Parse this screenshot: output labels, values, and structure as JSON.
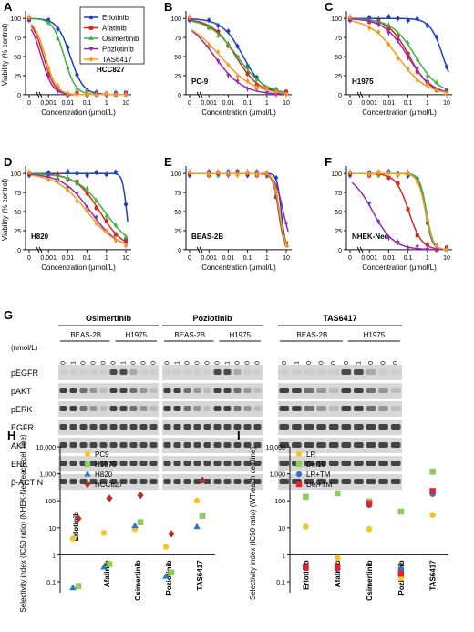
{
  "chart_data": [
    {
      "panel": "A",
      "type": "line",
      "cell_line": "HCC827",
      "xlabel": "Concentration (μmol/L)",
      "ylabel": "Viability (% control)",
      "x_ticks": [
        "0",
        "0.001",
        "0.01",
        "0.1",
        "1",
        "10"
      ],
      "y_ticks": [
        0,
        25,
        50,
        75,
        100
      ],
      "ylim": [
        0,
        105
      ],
      "x_scale": "log",
      "legend": "top-right",
      "series": [
        {
          "name": "Erlotinib",
          "color": "#1f3fbf",
          "marker": "circle",
          "ic50": 0.0135,
          "hill": 1.3
        },
        {
          "name": "Afatinib",
          "color": "#d42a1e",
          "marker": "square",
          "ic50": 0.00055,
          "hill": 1.5
        },
        {
          "name": "Osimertinib",
          "color": "#3cb341",
          "marker": "triangle-up",
          "ic50": 0.0065,
          "hill": 1.5
        },
        {
          "name": "Poziotinib",
          "color": "#8e2bb8",
          "marker": "triangle-down",
          "ic50": 0.00042,
          "hill": 1.5
        },
        {
          "name": "TAS6417",
          "color": "#f39a1f",
          "marker": "diamond",
          "ic50": 0.00068,
          "hill": 1.5
        }
      ]
    },
    {
      "panel": "B",
      "type": "line",
      "cell_line": "PC-9",
      "xlabel": "Concentration (μmol/L)",
      "ylabel": "",
      "x_ticks": [
        "0",
        "0.001",
        "0.01",
        "0.1",
        "1",
        "10"
      ],
      "y_ticks": [
        0,
        25,
        50,
        75,
        100
      ],
      "ylim": [
        0,
        105
      ],
      "x_scale": "log",
      "series": [
        {
          "name": "Erlotinib",
          "ic50": 0.06,
          "hill": 0.8
        },
        {
          "name": "Afatinib",
          "ic50": 0.025,
          "hill": 0.7
        },
        {
          "name": "Osimertinib",
          "ic50": 0.03,
          "hill": 0.6
        },
        {
          "name": "Poziotinib",
          "ic50": 0.002,
          "hill": 0.6
        },
        {
          "name": "TAS6417",
          "ic50": 0.004,
          "hill": 0.5
        }
      ]
    },
    {
      "panel": "C",
      "type": "line",
      "cell_line": "H1975",
      "xlabel": "Concentration (μmol/L)",
      "ylabel": "",
      "x_ticks": [
        "0",
        "0.001",
        "0.01",
        "0.1",
        "1",
        "10"
      ],
      "y_ticks": [
        0,
        25,
        50,
        75,
        100
      ],
      "ylim": [
        0,
        105
      ],
      "x_scale": "log",
      "series": [
        {
          "name": "Erlotinib",
          "ic50": 6.5,
          "hill": 1.3
        },
        {
          "name": "Afatinib",
          "ic50": 0.12,
          "hill": 0.8
        },
        {
          "name": "Osimertinib",
          "ic50": 0.25,
          "hill": 0.7
        },
        {
          "name": "Poziotinib",
          "ic50": 0.1,
          "hill": 0.7
        },
        {
          "name": "TAS6417",
          "ic50": 0.03,
          "hill": 0.6
        }
      ]
    },
    {
      "panel": "D",
      "type": "line",
      "cell_line": "H820",
      "xlabel": "Concentration (μmol/L)",
      "ylabel": "Viability (% control)",
      "x_ticks": [
        "0",
        "0.001",
        "0.01",
        "0.1",
        "1",
        "10"
      ],
      "y_ticks": [
        0,
        25,
        50,
        75,
        100
      ],
      "ylim": [
        0,
        105
      ],
      "x_scale": "log",
      "series": [
        {
          "name": "Erlotinib",
          "ic50": 11,
          "hill": 4
        },
        {
          "name": "Afatinib",
          "ic50": 0.45,
          "hill": 0.7
        },
        {
          "name": "Osimertinib",
          "ic50": 0.8,
          "hill": 0.6
        },
        {
          "name": "Poziotinib",
          "ic50": 0.15,
          "hill": 0.6
        },
        {
          "name": "TAS6417",
          "ic50": 0.1,
          "hill": 0.55
        }
      ]
    },
    {
      "panel": "E",
      "type": "line",
      "cell_line": "BEAS-2B",
      "xlabel": "Concentration (μmol/L)",
      "ylabel": "",
      "x_ticks": [
        "0",
        "0.001",
        "0.01",
        "0.1",
        "1",
        "10"
      ],
      "y_ticks": [
        0,
        25,
        50,
        75,
        100
      ],
      "ylim": [
        0,
        105
      ],
      "x_scale": "log",
      "series": [
        {
          "name": "Erlotinib",
          "ic50": 5.5,
          "hill": 4
        },
        {
          "name": "Afatinib",
          "ic50": 4.0,
          "hill": 3
        },
        {
          "name": "Osimertinib",
          "ic50": 4.3,
          "hill": 3
        },
        {
          "name": "Poziotinib",
          "ic50": 7.0,
          "hill": 2
        },
        {
          "name": "TAS6417",
          "ic50": 4.5,
          "hill": 3
        }
      ]
    },
    {
      "panel": "F",
      "type": "line",
      "cell_line": "NHEK-Neo",
      "xlabel": "Concentration (μmol/L)",
      "ylabel": "",
      "x_ticks": [
        "0",
        "0.001",
        "0.01",
        "0.1",
        "1",
        "10"
      ],
      "y_ticks": [
        0,
        25,
        50,
        75,
        100
      ],
      "ylim": [
        0,
        105
      ],
      "x_scale": "log",
      "series": [
        {
          "name": "Erlotinib",
          "ic50": 0.8,
          "hill": 2.5
        },
        {
          "name": "Afatinib",
          "ic50": 0.11,
          "hill": 1.3
        },
        {
          "name": "Osimertinib",
          "ic50": 0.9,
          "hill": 2.5
        },
        {
          "name": "Poziotinib",
          "ic50": 0.0015,
          "hill": 0.8
        },
        {
          "name": "TAS6417",
          "ic50": 0.8,
          "hill": 2.2
        }
      ]
    },
    {
      "panel": "H",
      "type": "scatter",
      "y_scale": "log",
      "ylabel": "Selectivity index (IC50 ratio) (NHEK-Neo/each cell line)",
      "y_ticks": [
        "0.1",
        "1",
        "10",
        "100",
        "1,000",
        "10,000"
      ],
      "categories": [
        "Erlotinib",
        "Afatinib",
        "Osimertinib",
        "Poziotinib",
        "TAS6417"
      ],
      "series": [
        {
          "name": "PC9",
          "color": "#f5c42c",
          "marker": "circle",
          "values": [
            4,
            6.5,
            9,
            2,
            100
          ]
        },
        {
          "name": "H1975",
          "color": "#8ccc5a",
          "marker": "square",
          "values": [
            0.07,
            0.45,
            16,
            0.22,
            28
          ]
        },
        {
          "name": "H820",
          "color": "#2b78c2",
          "marker": "triangle-up",
          "values": [
            0.06,
            0.35,
            12,
            0.16,
            11
          ]
        },
        {
          "name": "HCC827",
          "color": "#b3302a",
          "marker": "diamond",
          "values": [
            22,
            125,
            160,
            6,
            580
          ]
        }
      ]
    },
    {
      "panel": "I",
      "type": "scatter",
      "y_scale": "log",
      "ylabel": "Selectivity index (IC50 ratio) (WT/each cell line)",
      "y_ticks": [
        "0.1",
        "1",
        "10",
        "100",
        "1,000",
        "10,000"
      ],
      "categories": [
        "Erlotinib",
        "Afatinib",
        "Osimertinib",
        "Poziotinib",
        "TAS6417"
      ],
      "series": [
        {
          "name": "LR",
          "color": "#f5c42c",
          "marker": "circle",
          "values": [
            11,
            0.75,
            9,
            0.14,
            30
          ]
        },
        {
          "name": "Del19",
          "color": "#8ccc5a",
          "marker": "square",
          "values": [
            140,
            190,
            95,
            40,
            1200
          ]
        },
        {
          "name": "LR+TM",
          "color": "#2b78c2",
          "marker": "circle",
          "values": [
            0.32,
            0.3,
            70,
            0.3,
            180
          ]
        },
        {
          "name": "Del+TM",
          "color": "#e2232f",
          "marker": "square",
          "values": [
            0.35,
            0.35,
            80,
            0.2,
            230
          ]
        }
      ]
    }
  ],
  "blot": {
    "panel": "G",
    "drugs": [
      "Osimertinib",
      "Poziotinib",
      "TAS6417"
    ],
    "cell_lines": [
      "BEAS-2B",
      "H1975"
    ],
    "doses": [
      "0",
      "1",
      "10",
      "100",
      "1,000"
    ],
    "dose_unit": "(nmol/L)",
    "rows": [
      "pEGFR",
      "pAKT",
      "pERK",
      "EGFR",
      "AKT",
      "ERK",
      "β-ACTIN"
    ]
  },
  "panel_labels": [
    "A",
    "B",
    "C",
    "D",
    "E",
    "F",
    "G",
    "H",
    "I"
  ]
}
